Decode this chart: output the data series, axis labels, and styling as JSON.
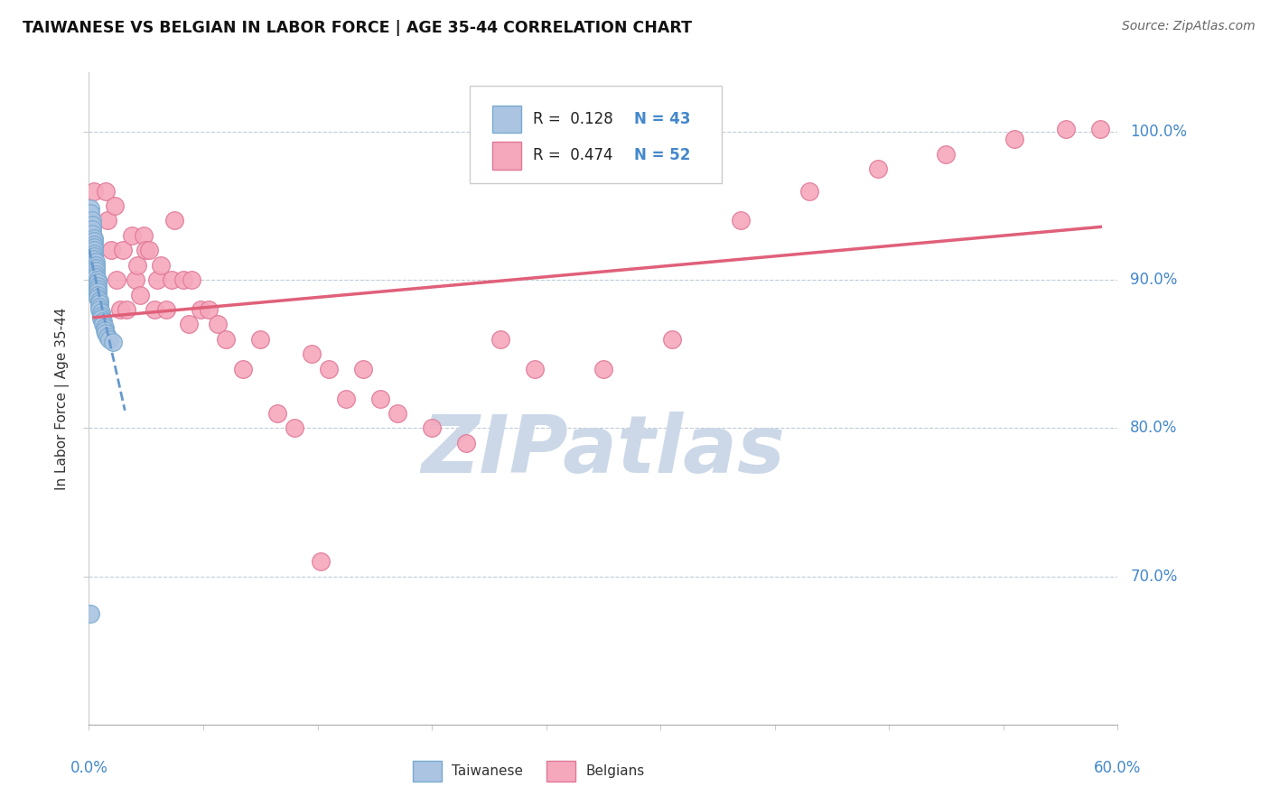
{
  "title": "TAIWANESE VS BELGIAN IN LABOR FORCE | AGE 35-44 CORRELATION CHART",
  "source": "Source: ZipAtlas.com",
  "ylabel": "In Labor Force | Age 35-44",
  "ytick_labels": [
    "100.0%",
    "90.0%",
    "80.0%",
    "70.0%"
  ],
  "ytick_values": [
    1.0,
    0.9,
    0.8,
    0.7
  ],
  "xlim": [
    0.0,
    0.6
  ],
  "ylim": [
    0.6,
    1.04
  ],
  "R_taiwanese": 0.128,
  "N_taiwanese": 43,
  "R_belgian": 0.474,
  "N_belgian": 52,
  "taiwanese_color": "#aac4e2",
  "taiwanese_edge": "#7aaad0",
  "belgian_color": "#f5a8bc",
  "belgian_edge": "#e07898",
  "trend_taiwanese_color": "#6699cc",
  "trend_belgian_color": "#e0607a",
  "background_color": "#ffffff",
  "watermark_text": "ZIPatlas",
  "watermark_color": "#ccd8e8",
  "title_fontsize": 12.5,
  "axis_label_color": "#4488cc",
  "tw_x": [
    0.001,
    0.001,
    0.002,
    0.002,
    0.002,
    0.002,
    0.003,
    0.003,
    0.003,
    0.003,
    0.003,
    0.003,
    0.003,
    0.003,
    0.004,
    0.004,
    0.004,
    0.004,
    0.004,
    0.004,
    0.005,
    0.005,
    0.005,
    0.005,
    0.005,
    0.005,
    0.005,
    0.006,
    0.006,
    0.006,
    0.006,
    0.007,
    0.007,
    0.007,
    0.008,
    0.008,
    0.009,
    0.009,
    0.01,
    0.011,
    0.012,
    0.014,
    0.001
  ],
  "tw_y": [
    0.948,
    0.945,
    0.94,
    0.937,
    0.934,
    0.931,
    0.928,
    0.926,
    0.924,
    0.922,
    0.92,
    0.918,
    0.916,
    0.914,
    0.912,
    0.91,
    0.908,
    0.906,
    0.904,
    0.902,
    0.9,
    0.898,
    0.896,
    0.894,
    0.892,
    0.89,
    0.888,
    0.886,
    0.884,
    0.882,
    0.88,
    0.878,
    0.876,
    0.874,
    0.872,
    0.87,
    0.868,
    0.866,
    0.864,
    0.862,
    0.86,
    0.858,
    0.675
  ],
  "be_x": [
    0.003,
    0.01,
    0.011,
    0.013,
    0.015,
    0.016,
    0.018,
    0.02,
    0.022,
    0.025,
    0.027,
    0.028,
    0.03,
    0.032,
    0.033,
    0.035,
    0.038,
    0.04,
    0.042,
    0.045,
    0.048,
    0.05,
    0.055,
    0.058,
    0.06,
    0.065,
    0.07,
    0.075,
    0.08,
    0.09,
    0.1,
    0.11,
    0.12,
    0.13,
    0.14,
    0.15,
    0.16,
    0.17,
    0.18,
    0.2,
    0.22,
    0.24,
    0.26,
    0.3,
    0.34,
    0.38,
    0.42,
    0.46,
    0.5,
    0.54,
    0.57,
    0.59
  ],
  "be_y": [
    0.96,
    0.96,
    0.94,
    0.92,
    0.95,
    0.9,
    0.88,
    0.92,
    0.88,
    0.93,
    0.9,
    0.91,
    0.89,
    0.93,
    0.92,
    0.92,
    0.88,
    0.9,
    0.91,
    0.88,
    0.9,
    0.94,
    0.9,
    0.87,
    0.9,
    0.88,
    0.88,
    0.87,
    0.86,
    0.84,
    0.86,
    0.81,
    0.8,
    0.85,
    0.84,
    0.82,
    0.84,
    0.82,
    0.81,
    0.8,
    0.79,
    0.86,
    0.84,
    0.84,
    0.86,
    0.94,
    0.96,
    0.975,
    0.985,
    0.995,
    1.002,
    1.002
  ],
  "be_outlier_x": [
    0.135
  ],
  "be_outlier_y": [
    0.71
  ]
}
